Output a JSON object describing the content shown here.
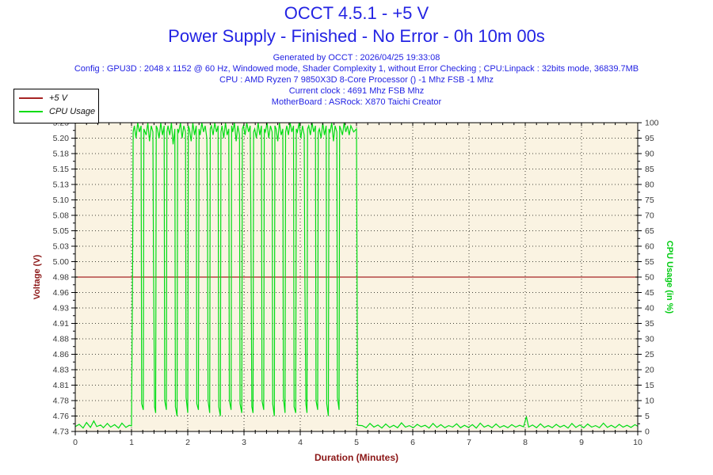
{
  "header": {
    "title": "OCCT 4.5.1 - +5 V",
    "subtitle": "Power Supply - Finished - No Error - 0h 10m 00s",
    "meta_lines": [
      "Generated by OCCT : 2026/04/25 19:33:08",
      "Config : GPU3D : 2048 x 1152 @ 60 Hz, Windowed mode, Shader Complexity 1, without Error Checking ; CPU:Linpack : 32bits mode, 36839.7MB",
      "CPU : AMD Ryzen 7 9850X3D 8-Core Processor () -1 Mhz FSB -1 Mhz",
      "Current clock : 4691 Mhz FSB  Mhz",
      "MotherBoard : ASRock: X870 Taichi Creator"
    ]
  },
  "legend": {
    "items": [
      {
        "label": "+5 V",
        "color": "#a62424"
      },
      {
        "label": "CPU Usage",
        "color": "#00dc14"
      }
    ]
  },
  "colors": {
    "title_blue": "#2323e3",
    "plot_background": "#faf3e2",
    "plot_border": "#000000",
    "grid_dots": "#45453c",
    "tick_label": "#3a3a3a",
    "voltage_line": "#a62424",
    "voltage_axis_title": "#8b1616",
    "cpu_line": "#00dc14",
    "cpu_axis_title": "#00cc11"
  },
  "chart_data": {
    "type": "line",
    "title": "OCCT 4.5.1 - +5 V",
    "grid": true,
    "x_axis": {
      "label": "Duration (Minutes)",
      "min": 0,
      "max": 10,
      "minor_step": 0.2,
      "tick_labels": [
        "0",
        "1",
        "2",
        "3",
        "4",
        "5",
        "6",
        "7",
        "8",
        "9",
        "10"
      ]
    },
    "y_left": {
      "label": "Voltage (V)",
      "min": 4.73,
      "max": 5.23,
      "tick_labels": [
        "5.23",
        "5.20",
        "5.18",
        "5.15",
        "5.13",
        "5.10",
        "5.08",
        "5.05",
        "5.03",
        "5.00",
        "4.98",
        "4.96",
        "4.93",
        "4.91",
        "4.88",
        "4.86",
        "4.83",
        "4.81",
        "4.78",
        "4.76",
        "4.73"
      ]
    },
    "y_right": {
      "label": "CPU Usage (in %)",
      "min": 0,
      "max": 100,
      "tick_labels": [
        "100",
        "95",
        "90",
        "85",
        "80",
        "75",
        "70",
        "65",
        "60",
        "55",
        "50",
        "45",
        "40",
        "35",
        "30",
        "25",
        "20",
        "15",
        "10",
        "5",
        "0"
      ]
    },
    "series": [
      {
        "name": "+5 V",
        "axis": "left",
        "color": "#a62424",
        "points": [
          [
            0,
            4.98
          ],
          [
            10,
            4.98
          ]
        ]
      },
      {
        "name": "CPU Usage",
        "axis": "right",
        "color": "#00dc14",
        "points": [
          [
            0,
            1.6
          ],
          [
            0.07,
            2.3
          ],
          [
            0.14,
            1.1
          ],
          [
            0.2,
            2.9
          ],
          [
            0.27,
            1.3
          ],
          [
            0.33,
            3.4
          ],
          [
            0.38,
            1.6
          ],
          [
            0.45,
            2.1
          ],
          [
            0.5,
            1.2
          ],
          [
            0.57,
            2.6
          ],
          [
            0.63,
            1.4
          ],
          [
            0.7,
            2.2
          ],
          [
            0.77,
            1.1
          ],
          [
            0.83,
            2.7
          ],
          [
            0.9,
            1.3
          ],
          [
            0.96,
            2.0
          ],
          [
            1.0,
            1.8
          ],
          [
            1.02,
            55
          ],
          [
            1.03,
            97
          ],
          [
            1.05,
            99
          ],
          [
            1.08,
            95
          ],
          [
            1.11,
            100
          ],
          [
            1.14,
            97
          ],
          [
            1.17,
            99
          ],
          [
            1.18,
            9
          ],
          [
            1.21,
            7
          ],
          [
            1.22,
            98
          ],
          [
            1.26,
            96
          ],
          [
            1.29,
            100
          ],
          [
            1.32,
            94
          ],
          [
            1.35,
            99
          ],
          [
            1.38,
            97
          ],
          [
            1.39,
            58
          ],
          [
            1.41,
            8
          ],
          [
            1.43,
            6
          ],
          [
            1.44,
            99
          ],
          [
            1.46,
            98
          ],
          [
            1.49,
            95
          ],
          [
            1.52,
            100
          ],
          [
            1.55,
            96
          ],
          [
            1.58,
            99
          ],
          [
            1.59,
            10
          ],
          [
            1.62,
            7
          ],
          [
            1.63,
            97
          ],
          [
            1.65,
            99
          ],
          [
            1.68,
            96
          ],
          [
            1.71,
            100
          ],
          [
            1.74,
            93
          ],
          [
            1.77,
            98
          ],
          [
            1.78,
            8
          ],
          [
            1.81,
            5
          ],
          [
            1.82,
            98
          ],
          [
            1.84,
            97
          ],
          [
            1.87,
            100
          ],
          [
            1.9,
            95
          ],
          [
            1.93,
            99
          ],
          [
            1.96,
            97
          ],
          [
            1.97,
            11
          ],
          [
            2.0,
            6
          ],
          [
            2.01,
            99
          ],
          [
            2.03,
            98
          ],
          [
            2.06,
            94
          ],
          [
            2.09,
            100
          ],
          [
            2.12,
            96
          ],
          [
            2.15,
            99
          ],
          [
            2.16,
            9
          ],
          [
            2.19,
            7
          ],
          [
            2.2,
            98
          ],
          [
            2.22,
            96
          ],
          [
            2.25,
            100
          ],
          [
            2.28,
            97
          ],
          [
            2.31,
            99
          ],
          [
            2.34,
            95
          ],
          [
            2.35,
            72
          ],
          [
            2.36,
            10
          ],
          [
            2.39,
            6
          ],
          [
            2.4,
            98
          ],
          [
            2.42,
            99
          ],
          [
            2.45,
            96
          ],
          [
            2.48,
            100
          ],
          [
            2.51,
            97
          ],
          [
            2.54,
            99
          ],
          [
            2.55,
            8
          ],
          [
            2.58,
            5
          ],
          [
            2.59,
            97
          ],
          [
            2.61,
            99
          ],
          [
            2.64,
            95
          ],
          [
            2.67,
            100
          ],
          [
            2.7,
            96
          ],
          [
            2.73,
            98
          ],
          [
            2.74,
            10
          ],
          [
            2.77,
            7
          ],
          [
            2.78,
            99
          ],
          [
            2.8,
            97
          ],
          [
            2.83,
            100
          ],
          [
            2.86,
            94
          ],
          [
            2.89,
            99
          ],
          [
            2.92,
            96
          ],
          [
            2.93,
            9
          ],
          [
            2.96,
            6
          ],
          [
            2.97,
            98
          ],
          [
            2.99,
            99
          ],
          [
            3.02,
            96
          ],
          [
            3.05,
            100
          ],
          [
            3.08,
            97
          ],
          [
            3.11,
            99
          ],
          [
            3.12,
            76
          ],
          [
            3.14,
            8
          ],
          [
            3.16,
            6
          ],
          [
            3.17,
            97
          ],
          [
            3.19,
            98
          ],
          [
            3.22,
            95
          ],
          [
            3.25,
            100
          ],
          [
            3.28,
            96
          ],
          [
            3.31,
            99
          ],
          [
            3.32,
            10
          ],
          [
            3.35,
            7
          ],
          [
            3.36,
            98
          ],
          [
            3.38,
            97
          ],
          [
            3.41,
            100
          ],
          [
            3.44,
            95
          ],
          [
            3.47,
            99
          ],
          [
            3.5,
            97
          ],
          [
            3.51,
            9
          ],
          [
            3.54,
            5
          ],
          [
            3.55,
            99
          ],
          [
            3.57,
            98
          ],
          [
            3.6,
            94
          ],
          [
            3.63,
            100
          ],
          [
            3.66,
            96
          ],
          [
            3.69,
            98
          ],
          [
            3.7,
            11
          ],
          [
            3.73,
            6
          ],
          [
            3.74,
            97
          ],
          [
            3.76,
            99
          ],
          [
            3.79,
            96
          ],
          [
            3.82,
            100
          ],
          [
            3.85,
            97
          ],
          [
            3.88,
            99
          ],
          [
            3.89,
            8
          ],
          [
            3.92,
            6
          ],
          [
            3.93,
            98
          ],
          [
            3.95,
            97
          ],
          [
            3.98,
            100
          ],
          [
            4.01,
            95
          ],
          [
            4.04,
            99
          ],
          [
            4.07,
            96
          ],
          [
            4.08,
            55
          ],
          [
            4.1,
            9
          ],
          [
            4.12,
            6
          ],
          [
            4.13,
            98
          ],
          [
            4.15,
            99
          ],
          [
            4.18,
            96
          ],
          [
            4.21,
            100
          ],
          [
            4.24,
            97
          ],
          [
            4.27,
            99
          ],
          [
            4.28,
            10
          ],
          [
            4.31,
            7
          ],
          [
            4.32,
            97
          ],
          [
            4.34,
            98
          ],
          [
            4.37,
            95
          ],
          [
            4.4,
            100
          ],
          [
            4.43,
            96
          ],
          [
            4.46,
            99
          ],
          [
            4.47,
            9
          ],
          [
            4.5,
            5
          ],
          [
            4.51,
            98
          ],
          [
            4.53,
            97
          ],
          [
            4.56,
            100
          ],
          [
            4.59,
            94
          ],
          [
            4.62,
            99
          ],
          [
            4.65,
            97
          ],
          [
            4.66,
            11
          ],
          [
            4.69,
            7
          ],
          [
            4.7,
            99
          ],
          [
            4.72,
            98
          ],
          [
            4.75,
            96
          ],
          [
            4.78,
            100
          ],
          [
            4.81,
            97
          ],
          [
            4.84,
            99
          ],
          [
            4.87,
            96
          ],
          [
            4.9,
            99
          ],
          [
            4.95,
            97
          ],
          [
            5.0,
            98
          ],
          [
            5.02,
            2
          ],
          [
            5.1,
            1.9
          ],
          [
            5.17,
            1.2
          ],
          [
            5.24,
            2.6
          ],
          [
            5.31,
            1.4
          ],
          [
            5.38,
            2.1
          ],
          [
            5.45,
            1.1
          ],
          [
            5.52,
            2.4
          ],
          [
            5.59,
            1.3
          ],
          [
            5.66,
            2.0
          ],
          [
            5.73,
            1.2
          ],
          [
            5.8,
            2.8
          ],
          [
            5.87,
            1.4
          ],
          [
            5.94,
            1.9
          ],
          [
            6.01,
            1.2
          ],
          [
            6.08,
            2.3
          ],
          [
            6.15,
            1.5
          ],
          [
            6.22,
            2.0
          ],
          [
            6.29,
            1.1
          ],
          [
            6.36,
            2.6
          ],
          [
            6.43,
            1.3
          ],
          [
            6.5,
            2.2
          ],
          [
            6.57,
            1.2
          ],
          [
            6.64,
            1.9
          ],
          [
            6.71,
            1.4
          ],
          [
            6.78,
            2.5
          ],
          [
            6.85,
            1.2
          ],
          [
            6.92,
            2.0
          ],
          [
            6.99,
            1.3
          ],
          [
            7.06,
            2.2
          ],
          [
            7.13,
            1.1
          ],
          [
            7.2,
            2.7
          ],
          [
            7.27,
            1.4
          ],
          [
            7.34,
            2.0
          ],
          [
            7.41,
            1.2
          ],
          [
            7.48,
            2.4
          ],
          [
            7.55,
            1.3
          ],
          [
            7.62,
            1.9
          ],
          [
            7.69,
            1.2
          ],
          [
            7.76,
            2.2
          ],
          [
            7.83,
            1.4
          ],
          [
            7.9,
            2.0
          ],
          [
            7.97,
            1.5
          ],
          [
            8.02,
            4.8
          ],
          [
            8.06,
            1.4
          ],
          [
            8.13,
            2.1
          ],
          [
            8.2,
            1.2
          ],
          [
            8.27,
            2.5
          ],
          [
            8.34,
            1.3
          ],
          [
            8.41,
            1.9
          ],
          [
            8.48,
            1.2
          ],
          [
            8.55,
            2.3
          ],
          [
            8.62,
            1.4
          ],
          [
            8.69,
            2.0
          ],
          [
            8.76,
            1.1
          ],
          [
            8.83,
            2.6
          ],
          [
            8.9,
            1.3
          ],
          [
            8.97,
            2.1
          ],
          [
            9.04,
            1.2
          ],
          [
            9.11,
            2.4
          ],
          [
            9.18,
            1.4
          ],
          [
            9.25,
            1.9
          ],
          [
            9.32,
            1.2
          ],
          [
            9.39,
            2.7
          ],
          [
            9.46,
            1.3
          ],
          [
            9.53,
            2.0
          ],
          [
            9.6,
            1.2
          ],
          [
            9.67,
            2.3
          ],
          [
            9.74,
            1.4
          ],
          [
            9.81,
            2.0
          ],
          [
            9.88,
            1.3
          ],
          [
            9.95,
            2.2
          ],
          [
            10.0,
            1.7
          ]
        ]
      }
    ]
  }
}
